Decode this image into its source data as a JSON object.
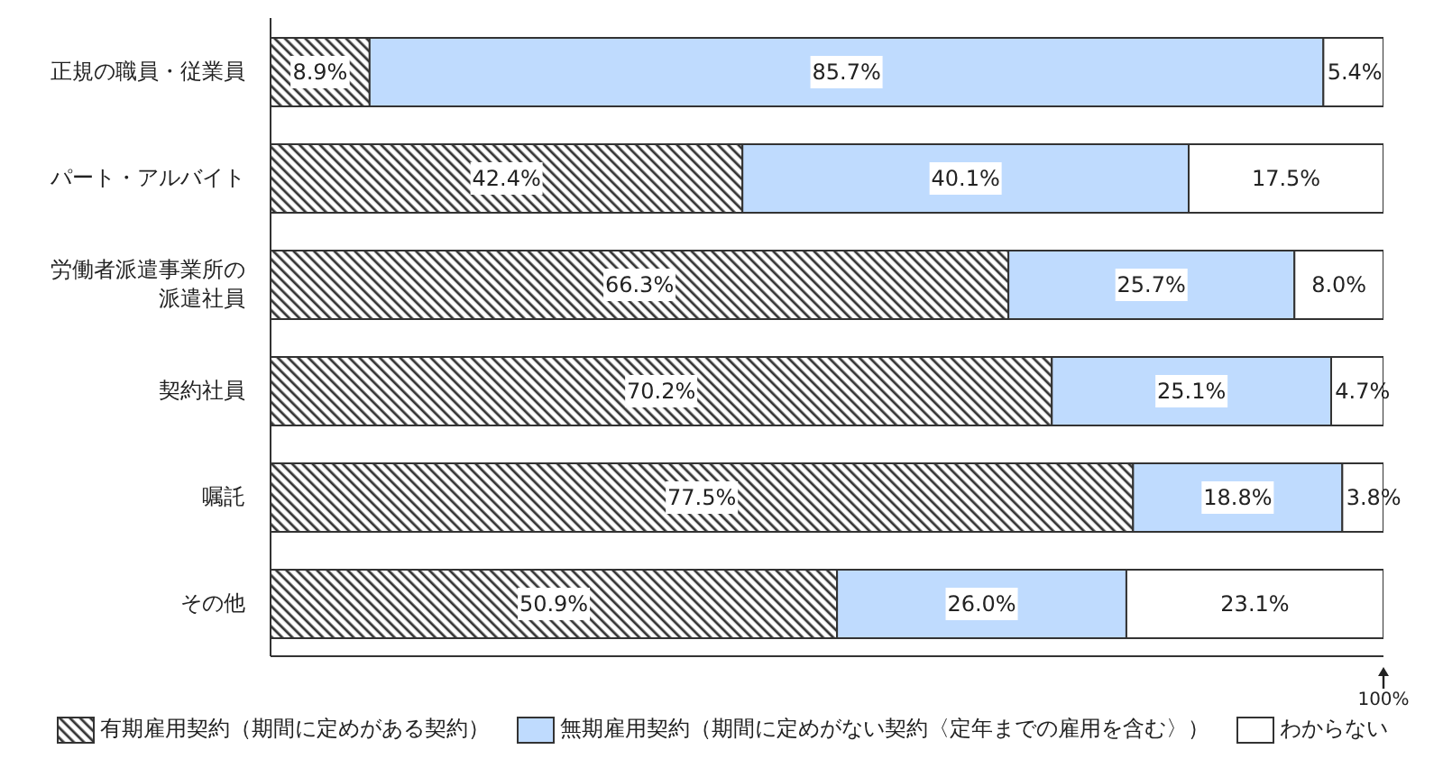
{
  "chart_data": {
    "type": "bar",
    "orientation": "horizontal",
    "stacked": true,
    "categories": [
      "正規の職員・従業員",
      "パート・アルバイト",
      "労働者派遣事業所の派遣社員",
      "契約社員",
      "嘱託",
      "その他"
    ],
    "series": [
      {
        "name": "有期雇用契約（期間に定めがある契約）",
        "color": "#333333",
        "values": [
          8.9,
          42.4,
          66.3,
          70.2,
          77.5,
          50.9
        ],
        "value_labels": [
          "8.9%",
          "42.4%",
          "66.3%",
          "70.2%",
          "77.5%",
          "50.9%"
        ]
      },
      {
        "name": "無期雇用契約（期間に定めがない契約〈定年までの雇用を含む〉）",
        "color": "#bfdbfe",
        "values": [
          85.7,
          40.1,
          25.7,
          25.1,
          18.8,
          26.0
        ],
        "value_labels": [
          "85.7%",
          "40.1%",
          "25.7%",
          "25.1%",
          "18.8%",
          "26.0%"
        ]
      },
      {
        "name": "わからない",
        "color": "#ffffff",
        "values": [
          5.4,
          17.5,
          8.0,
          4.7,
          3.8,
          23.1
        ],
        "value_labels": [
          "5.4%",
          "17.5%",
          "8.0%",
          "4.7%",
          "3.8%",
          "23.1%"
        ]
      }
    ],
    "xlim": [
      0,
      100
    ],
    "tick_labels": "y",
    "grid": false,
    "legend": "bottom",
    "annotations": [
      "100%"
    ]
  }
}
